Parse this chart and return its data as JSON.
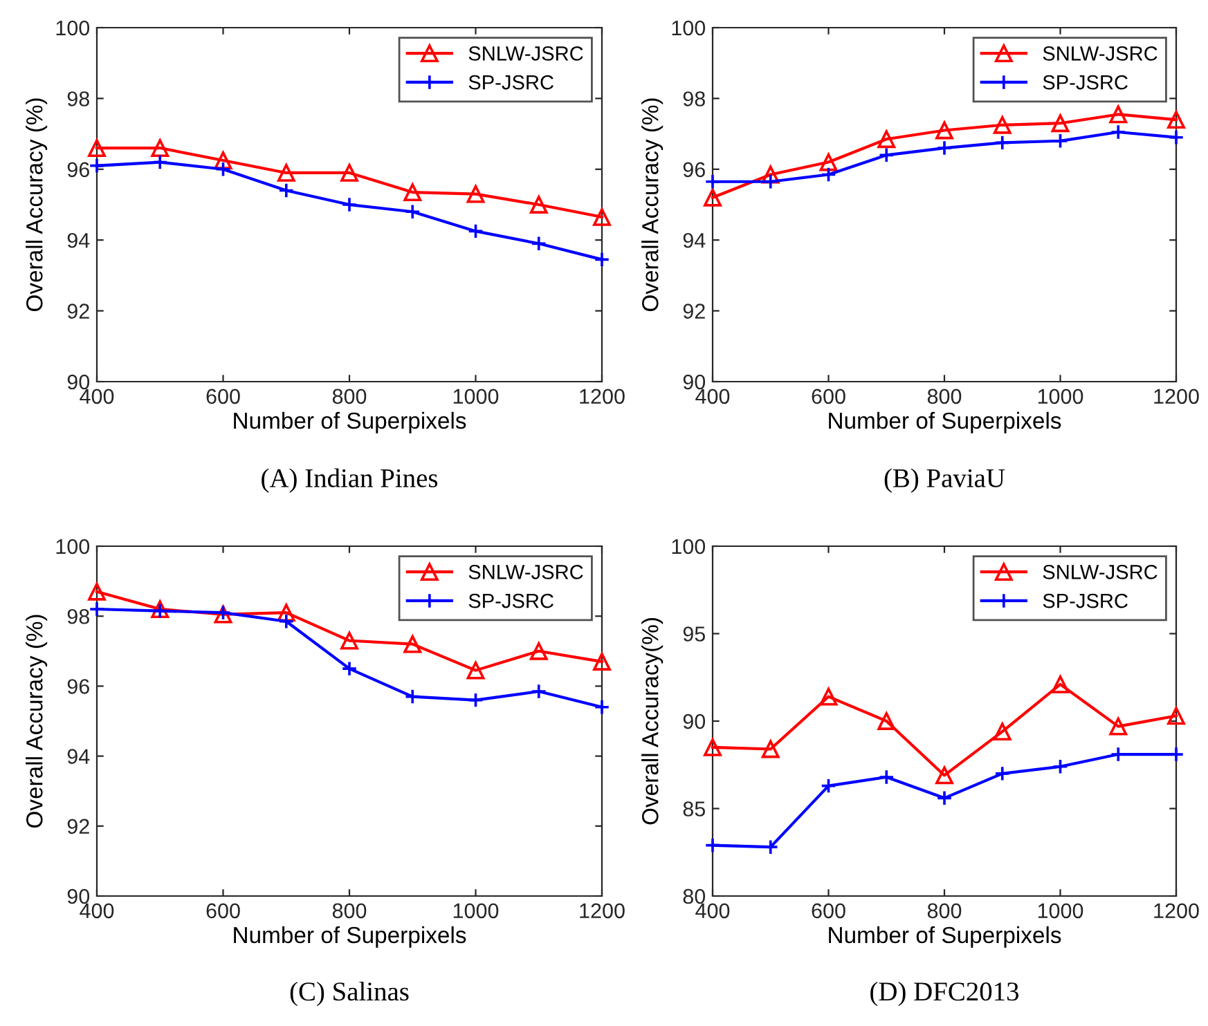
{
  "chart_data": [
    {
      "type": "line",
      "title": "(A) Indian Pines",
      "xlabel": "Number of Superpixels",
      "ylabel": "Overall Accuracy (%)",
      "x": [
        400,
        500,
        600,
        700,
        800,
        900,
        1000,
        1100,
        1200
      ],
      "xlim": [
        400,
        1200
      ],
      "xticks": [
        400,
        600,
        800,
        1000,
        1200
      ],
      "ylim": [
        90,
        100
      ],
      "yticks": [
        90,
        92,
        94,
        96,
        98,
        100
      ],
      "grid": false,
      "legend": "top right",
      "series": [
        {
          "name": "SNLW-JSRC",
          "color": "#ff0000",
          "marker": "triangle",
          "values": [
            96.6,
            96.6,
            96.25,
            95.9,
            95.9,
            95.35,
            95.3,
            95.0,
            94.65
          ]
        },
        {
          "name": "SP-JSRC",
          "color": "#0000ff",
          "marker": "cross",
          "values": [
            96.1,
            96.2,
            96.0,
            95.4,
            95.0,
            94.8,
            94.25,
            93.9,
            93.45
          ]
        }
      ]
    },
    {
      "type": "line",
      "title": "(B) PaviaU",
      "xlabel": "Number of Superpixels",
      "ylabel": "Overall Accuracy (%)",
      "x": [
        400,
        500,
        600,
        700,
        800,
        900,
        1000,
        1100,
        1200
      ],
      "xlim": [
        400,
        1200
      ],
      "xticks": [
        400,
        600,
        800,
        1000,
        1200
      ],
      "ylim": [
        90,
        100
      ],
      "yticks": [
        90,
        92,
        94,
        96,
        98,
        100
      ],
      "grid": false,
      "legend": "top right",
      "series": [
        {
          "name": "SNLW-JSRC",
          "color": "#ff0000",
          "marker": "triangle",
          "values": [
            95.2,
            95.85,
            96.2,
            96.85,
            97.1,
            97.25,
            97.3,
            97.55,
            97.4
          ]
        },
        {
          "name": "SP-JSRC",
          "color": "#0000ff",
          "marker": "cross",
          "values": [
            95.65,
            95.65,
            95.85,
            96.4,
            96.6,
            96.75,
            96.8,
            97.05,
            96.9
          ]
        }
      ]
    },
    {
      "type": "line",
      "title": "(C) Salinas",
      "xlabel": "Number of Superpixels",
      "ylabel": "Overall Accuracy (%)",
      "x": [
        400,
        500,
        600,
        700,
        800,
        900,
        1000,
        1100,
        1200
      ],
      "xlim": [
        400,
        1200
      ],
      "xticks": [
        400,
        600,
        800,
        1000,
        1200
      ],
      "ylim": [
        90,
        100
      ],
      "yticks": [
        90,
        92,
        94,
        96,
        98,
        100
      ],
      "grid": false,
      "legend": "top right",
      "series": [
        {
          "name": "SNLW-JSRC",
          "color": "#ff0000",
          "marker": "triangle",
          "values": [
            98.7,
            98.2,
            98.05,
            98.1,
            97.3,
            97.2,
            96.45,
            97.0,
            96.7
          ]
        },
        {
          "name": "SP-JSRC",
          "color": "#0000ff",
          "marker": "cross",
          "values": [
            98.2,
            98.15,
            98.1,
            97.85,
            96.5,
            95.7,
            95.6,
            95.85,
            95.4
          ]
        }
      ]
    },
    {
      "type": "line",
      "title": "(D) DFC2013",
      "xlabel": "Number of Superpixels",
      "ylabel": "Overall Accuracy(%)",
      "x": [
        400,
        500,
        600,
        700,
        800,
        900,
        1000,
        1100,
        1200
      ],
      "xlim": [
        400,
        1200
      ],
      "xticks": [
        400,
        600,
        800,
        1000,
        1200
      ],
      "ylim": [
        80,
        100
      ],
      "yticks": [
        80,
        85,
        90,
        95,
        100
      ],
      "grid": false,
      "legend": "top right",
      "series": [
        {
          "name": "SNLW-JSRC",
          "color": "#ff0000",
          "marker": "triangle",
          "values": [
            88.5,
            88.4,
            91.4,
            90.0,
            86.9,
            89.4,
            92.1,
            89.7,
            90.3
          ]
        },
        {
          "name": "SP-JSRC",
          "color": "#0000ff",
          "marker": "cross",
          "values": [
            82.9,
            82.8,
            86.3,
            86.8,
            85.6,
            87.0,
            87.4,
            88.1,
            88.1
          ]
        }
      ]
    }
  ]
}
